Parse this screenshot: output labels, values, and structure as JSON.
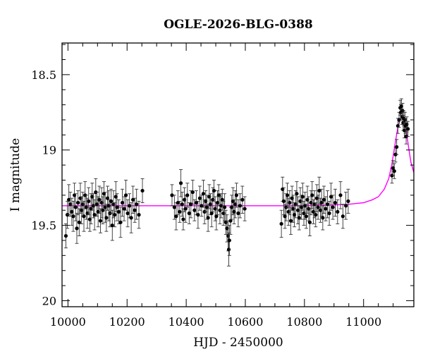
{
  "chart_data": {
    "type": "scatter",
    "title": "OGLE-2026-BLG-0388",
    "xlabel": "HJD - 2450000",
    "ylabel": "I magnitude",
    "xlim": [
      9980,
      11170
    ],
    "ylim": [
      20.04,
      18.29
    ],
    "y_inverted": true,
    "xticks": [
      10000,
      10200,
      10400,
      10600,
      10800,
      11000
    ],
    "xtick_labels": [
      "10000",
      "10200",
      "10400",
      "10600",
      "10800",
      "11000"
    ],
    "yticks": [
      18.5,
      19,
      19.5,
      20
    ],
    "ytick_labels": [
      "18.5",
      "19",
      "19.5",
      "20"
    ],
    "grid": false,
    "series": [
      {
        "kind": "points_with_errorbars",
        "color": "#000000",
        "points": [
          [
            9993,
            19.57,
            0.08
          ],
          [
            9998,
            19.43,
            0.09
          ],
          [
            10003,
            19.33,
            0.1
          ],
          [
            10008,
            19.36,
            0.08
          ],
          [
            10013,
            19.41,
            0.09
          ],
          [
            10018,
            19.44,
            0.1
          ],
          [
            10022,
            19.3,
            0.08
          ],
          [
            10026,
            19.38,
            0.09
          ],
          [
            10030,
            19.52,
            0.1
          ],
          [
            10034,
            19.35,
            0.08
          ],
          [
            10038,
            19.48,
            0.09
          ],
          [
            10042,
            19.32,
            0.1
          ],
          [
            10046,
            19.4,
            0.09
          ],
          [
            10050,
            19.36,
            0.08
          ],
          [
            10054,
            19.44,
            0.1
          ],
          [
            10058,
            19.3,
            0.09
          ],
          [
            10062,
            19.38,
            0.08
          ],
          [
            10066,
            19.42,
            0.1
          ],
          [
            10070,
            19.34,
            0.09
          ],
          [
            10074,
            19.46,
            0.08
          ],
          [
            10078,
            19.39,
            0.1
          ],
          [
            10082,
            19.31,
            0.09
          ],
          [
            10086,
            19.37,
            0.08
          ],
          [
            10090,
            19.43,
            0.1
          ],
          [
            10094,
            19.28,
            0.09
          ],
          [
            10098,
            19.36,
            0.08
          ],
          [
            10102,
            19.41,
            0.1
          ],
          [
            10106,
            19.33,
            0.09
          ],
          [
            10110,
            19.47,
            0.08
          ],
          [
            10114,
            19.35,
            0.1
          ],
          [
            10118,
            19.4,
            0.09
          ],
          [
            10122,
            19.29,
            0.08
          ],
          [
            10126,
            19.38,
            0.1
          ],
          [
            10130,
            19.45,
            0.09
          ],
          [
            10134,
            19.32,
            0.08
          ],
          [
            10138,
            19.37,
            0.1
          ],
          [
            10142,
            19.42,
            0.09
          ],
          [
            10146,
            19.34,
            0.08
          ],
          [
            10150,
            19.5,
            0.1
          ],
          [
            10154,
            19.36,
            0.09
          ],
          [
            10158,
            19.43,
            0.08
          ],
          [
            10162,
            19.31,
            0.1
          ],
          [
            10166,
            19.38,
            0.09
          ],
          [
            10172,
            19.41,
            0.08
          ],
          [
            10178,
            19.48,
            0.1
          ],
          [
            10184,
            19.35,
            0.09
          ],
          [
            10190,
            19.39,
            0.08
          ],
          [
            10196,
            19.3,
            0.1
          ],
          [
            10202,
            19.42,
            0.09
          ],
          [
            10208,
            19.37,
            0.08
          ],
          [
            10214,
            19.45,
            0.1
          ],
          [
            10220,
            19.33,
            0.09
          ],
          [
            10226,
            19.4,
            0.08
          ],
          [
            10232,
            19.36,
            0.1
          ],
          [
            10240,
            19.43,
            0.09
          ],
          [
            10252,
            19.27,
            0.08
          ],
          [
            10352,
            19.3,
            0.07
          ],
          [
            10360,
            19.38,
            0.08
          ],
          [
            10366,
            19.44,
            0.09
          ],
          [
            10372,
            19.35,
            0.08
          ],
          [
            10378,
            19.41,
            0.07
          ],
          [
            10382,
            19.22,
            0.09
          ],
          [
            10386,
            19.36,
            0.08
          ],
          [
            10390,
            19.46,
            0.07
          ],
          [
            10394,
            19.33,
            0.08
          ],
          [
            10398,
            19.39,
            0.09
          ],
          [
            10404,
            19.3,
            0.08
          ],
          [
            10410,
            19.42,
            0.07
          ],
          [
            10416,
            19.36,
            0.09
          ],
          [
            10422,
            19.28,
            0.08
          ],
          [
            10428,
            19.4,
            0.07
          ],
          [
            10434,
            19.35,
            0.08
          ],
          [
            10440,
            19.43,
            0.09
          ],
          [
            10446,
            19.32,
            0.08
          ],
          [
            10452,
            19.37,
            0.07
          ],
          [
            10458,
            19.29,
            0.09
          ],
          [
            10462,
            19.41,
            0.08
          ],
          [
            10466,
            19.34,
            0.07
          ],
          [
            10470,
            19.38,
            0.08
          ],
          [
            10474,
            19.45,
            0.09
          ],
          [
            10478,
            19.31,
            0.08
          ],
          [
            10482,
            19.36,
            0.07
          ],
          [
            10486,
            19.42,
            0.09
          ],
          [
            10490,
            19.33,
            0.08
          ],
          [
            10494,
            19.27,
            0.07
          ],
          [
            10498,
            19.39,
            0.08
          ],
          [
            10502,
            19.44,
            0.09
          ],
          [
            10506,
            19.35,
            0.08
          ],
          [
            10510,
            19.3,
            0.07
          ],
          [
            10514,
            19.4,
            0.09
          ],
          [
            10518,
            19.37,
            0.08
          ],
          [
            10522,
            19.33,
            0.07
          ],
          [
            10526,
            19.42,
            0.08
          ],
          [
            10530,
            19.38,
            0.09
          ],
          [
            10534,
            19.48,
            0.08
          ],
          [
            10538,
            19.52,
            0.09
          ],
          [
            10542,
            19.57,
            0.1
          ],
          [
            10544,
            19.66,
            0.11
          ],
          [
            10546,
            19.6,
            0.1
          ],
          [
            10550,
            19.47,
            0.09
          ],
          [
            10554,
            19.38,
            0.08
          ],
          [
            10558,
            19.34,
            0.09
          ],
          [
            10562,
            19.41,
            0.08
          ],
          [
            10566,
            19.36,
            0.09
          ],
          [
            10570,
            19.3,
            0.08
          ],
          [
            10576,
            19.42,
            0.09
          ],
          [
            10582,
            19.37,
            0.08
          ],
          [
            10590,
            19.33,
            0.09
          ],
          [
            10598,
            19.39,
            0.08
          ],
          [
            10722,
            19.49,
            0.09
          ],
          [
            10726,
            19.26,
            0.08
          ],
          [
            10730,
            19.34,
            0.09
          ],
          [
            10734,
            19.44,
            0.08
          ],
          [
            10738,
            19.38,
            0.09
          ],
          [
            10742,
            19.3,
            0.08
          ],
          [
            10746,
            19.41,
            0.09
          ],
          [
            10750,
            19.35,
            0.08
          ],
          [
            10754,
            19.47,
            0.09
          ],
          [
            10758,
            19.32,
            0.08
          ],
          [
            10762,
            19.39,
            0.09
          ],
          [
            10766,
            19.43,
            0.08
          ],
          [
            10770,
            19.36,
            0.09
          ],
          [
            10774,
            19.29,
            0.08
          ],
          [
            10778,
            19.4,
            0.09
          ],
          [
            10782,
            19.45,
            0.08
          ],
          [
            10786,
            19.34,
            0.09
          ],
          [
            10790,
            19.38,
            0.08
          ],
          [
            10794,
            19.31,
            0.09
          ],
          [
            10798,
            19.42,
            0.08
          ],
          [
            10802,
            19.37,
            0.09
          ],
          [
            10806,
            19.44,
            0.08
          ],
          [
            10810,
            19.33,
            0.09
          ],
          [
            10814,
            19.39,
            0.08
          ],
          [
            10818,
            19.48,
            0.09
          ],
          [
            10822,
            19.35,
            0.08
          ],
          [
            10826,
            19.3,
            0.09
          ],
          [
            10830,
            19.41,
            0.08
          ],
          [
            10834,
            19.36,
            0.09
          ],
          [
            10838,
            19.43,
            0.08
          ],
          [
            10842,
            19.32,
            0.09
          ],
          [
            10846,
            19.38,
            0.08
          ],
          [
            10850,
            19.27,
            0.09
          ],
          [
            10854,
            19.4,
            0.08
          ],
          [
            10858,
            19.35,
            0.09
          ],
          [
            10862,
            19.45,
            0.08
          ],
          [
            10866,
            19.33,
            0.09
          ],
          [
            10872,
            19.39,
            0.08
          ],
          [
            10878,
            19.36,
            0.09
          ],
          [
            10884,
            19.42,
            0.08
          ],
          [
            10890,
            19.31,
            0.09
          ],
          [
            10896,
            19.38,
            0.08
          ],
          [
            10904,
            19.35,
            0.09
          ],
          [
            10912,
            19.41,
            0.08
          ],
          [
            10922,
            19.3,
            0.09
          ],
          [
            10930,
            19.44,
            0.08
          ],
          [
            10940,
            19.37,
            0.09
          ],
          [
            10948,
            19.34,
            0.08
          ],
          [
            11096,
            19.17,
            0.05
          ],
          [
            11100,
            19.12,
            0.05
          ],
          [
            11104,
            19.14,
            0.05
          ],
          [
            11108,
            19.03,
            0.05
          ],
          [
            11112,
            18.98,
            0.05
          ],
          [
            11116,
            18.84,
            0.05
          ],
          [
            11120,
            18.8,
            0.05
          ],
          [
            11124,
            18.72,
            0.05
          ],
          [
            11126,
            18.75,
            0.05
          ],
          [
            11128,
            18.71,
            0.05
          ],
          [
            11130,
            18.78,
            0.05
          ],
          [
            11132,
            18.74,
            0.05
          ],
          [
            11134,
            18.82,
            0.05
          ],
          [
            11136,
            18.79,
            0.05
          ],
          [
            11138,
            18.87,
            0.05
          ],
          [
            11140,
            18.8,
            0.05
          ],
          [
            11142,
            18.84,
            0.05
          ],
          [
            11144,
            18.91,
            0.05
          ],
          [
            11146,
            18.83,
            0.05
          ],
          [
            11150,
            18.86,
            0.05
          ]
        ]
      },
      {
        "kind": "model_curve",
        "color": "#ff00ff",
        "x": [
          9980,
          10200,
          10400,
          10600,
          10800,
          10900,
          10950,
          11000,
          11030,
          11050,
          11070,
          11085,
          11095,
          11105,
          11115,
          11125,
          11132,
          11138,
          11145,
          11152,
          11160,
          11170
        ],
        "y": [
          19.37,
          19.37,
          19.37,
          19.37,
          19.37,
          19.365,
          19.36,
          19.35,
          19.33,
          19.31,
          19.26,
          19.19,
          19.1,
          18.98,
          18.86,
          18.79,
          18.78,
          18.81,
          18.88,
          18.98,
          19.08,
          19.15
        ]
      }
    ]
  }
}
